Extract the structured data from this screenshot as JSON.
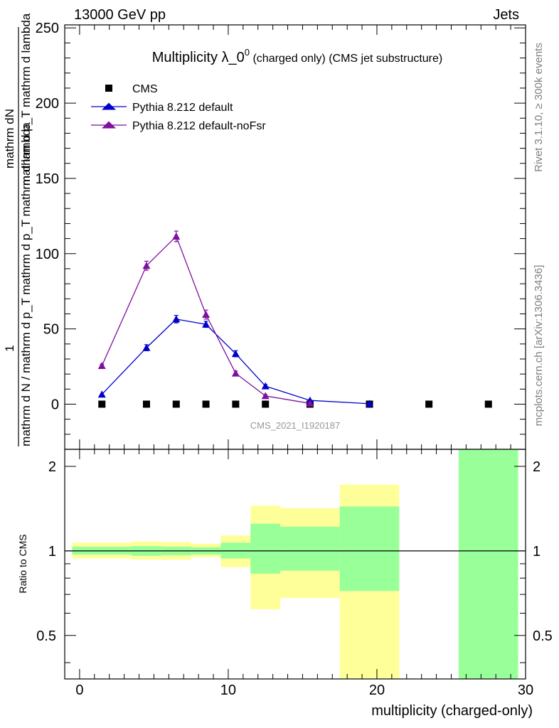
{
  "header": {
    "left": "13000 GeV pp",
    "right": "Jets"
  },
  "side": {
    "rivet": "Rivet 3.1.10, ≥ 300k events",
    "mcplots": "mcplots.cern.ch [arXiv:1306.3436]"
  },
  "colors": {
    "cms": "#000000",
    "default": "#0000cc",
    "nofsr": "#7f0f9f",
    "band_outer": "#ffff99",
    "band_inner": "#99ff99",
    "watermark": "#999999",
    "side_text": "#808080"
  },
  "chart_data": [
    {
      "type": "line",
      "title_main": "Multiplicity λ_0",
      "title_sup": "0",
      "title_sub": " (charged only) (CMS jet substructure)",
      "ylabel_numerator": "mathrm dN",
      "ylabel_numerator_one": "1",
      "ylabel_denominator_top": "mathrm d p_T mathrm d lambda",
      "ylabel_denominator_main": "mathrm d N / mathrm d p_T mathrm d p_T mathrm d lambda",
      "ylabel_lines": [
        "mathrm dN",
        "mathrm d p_T mathrm d lambda",
        "1",
        "mathrm d N / mathrm d p_T mathrm d p_T mathrm d lambda"
      ],
      "watermark": "CMS_2021_I1920187",
      "xlim": [
        -1,
        30
      ],
      "ylim": [
        -30,
        252
      ],
      "yticks": [
        0,
        50,
        100,
        150,
        200,
        250
      ],
      "ytick_labels": [
        "0",
        "50",
        "100",
        "150",
        "200",
        "250"
      ],
      "legend": [
        "CMS",
        "Pythia 8.212 default",
        "Pythia 8.212 default-noFsr"
      ],
      "series": [
        {
          "name": "CMS",
          "marker": "square",
          "x": [
            1.5,
            4.5,
            6.5,
            8.5,
            10.5,
            12.5,
            15.5,
            19.5,
            23.5,
            27.5
          ],
          "y": [
            0,
            0,
            0,
            0,
            0,
            0,
            0,
            0,
            0,
            0
          ]
        },
        {
          "name": "Pythia 8.212 default",
          "marker": "triangle",
          "x": [
            1.5,
            4.5,
            6.5,
            8.5,
            10.5,
            12.5,
            15.5,
            19.5
          ],
          "y": [
            6.5,
            37.5,
            56.5,
            53.0,
            33.5,
            12.0,
            2.5,
            0.3
          ],
          "err": [
            0.5,
            2.0,
            2.5,
            2.0,
            2.0,
            1.0,
            0.5,
            0.1
          ]
        },
        {
          "name": "Pythia 8.212 default-noFsr",
          "marker": "triangle",
          "x": [
            1.5,
            4.5,
            6.5,
            8.5,
            10.5,
            12.5,
            15.5
          ],
          "y": [
            25.5,
            92.0,
            111.5,
            59.5,
            20.5,
            5.5,
            0.5
          ],
          "err": [
            1.0,
            3.0,
            3.5,
            3.0,
            1.5,
            0.7,
            0.2
          ]
        }
      ]
    },
    {
      "type": "area",
      "ylabel": "Ratio to CMS",
      "xlabel": "multiplicity (charged-only)",
      "xlim": [
        -1,
        30
      ],
      "ylim": [
        0.35,
        2.3
      ],
      "yscale": "log",
      "xticks": [
        0,
        10,
        20,
        30
      ],
      "xtick_labels": [
        "0",
        "10",
        "20",
        "30"
      ],
      "yticks": [
        0.5,
        1,
        2
      ],
      "ytick_labels": [
        "0.5",
        "1",
        "2"
      ],
      "reference_line": 1,
      "bins": [
        {
          "lo": -0.5,
          "hi": 3.5,
          "outer": [
            0.94,
            1.07
          ],
          "inner": [
            0.97,
            1.035
          ]
        },
        {
          "lo": 3.5,
          "hi": 5.5,
          "outer": [
            0.93,
            1.08
          ],
          "inner": [
            0.96,
            1.04
          ]
        },
        {
          "lo": 5.5,
          "hi": 7.5,
          "outer": [
            0.93,
            1.075
          ],
          "inner": [
            0.965,
            1.035
          ]
        },
        {
          "lo": 7.5,
          "hi": 9.5,
          "outer": [
            0.95,
            1.06
          ],
          "inner": [
            0.97,
            1.03
          ]
        },
        {
          "lo": 9.5,
          "hi": 11.5,
          "outer": [
            0.875,
            1.135
          ],
          "inner": [
            0.94,
            1.07
          ]
        },
        {
          "lo": 11.5,
          "hi": 13.5,
          "outer": [
            0.62,
            1.45
          ],
          "inner": [
            0.83,
            1.25
          ]
        },
        {
          "lo": 13.5,
          "hi": 17.5,
          "outer": [
            0.68,
            1.42
          ],
          "inner": [
            0.85,
            1.22
          ]
        },
        {
          "lo": 17.5,
          "hi": 21.5,
          "outer": [
            0.35,
            1.72
          ],
          "inner": [
            0.72,
            1.44
          ]
        },
        {
          "lo": 25.5,
          "hi": 29.5,
          "outer": [
            0.35,
            2.3
          ],
          "inner": [
            0.35,
            2.3
          ]
        }
      ]
    }
  ]
}
